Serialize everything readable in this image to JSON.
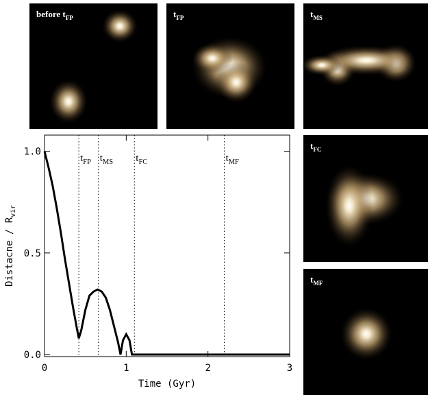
{
  "chart_data": {
    "type": "line",
    "x_label": "Time (Gyr)",
    "y_label": "Distacne / R",
    "y_label_sub": "vir",
    "x": [
      0,
      0.05,
      0.1,
      0.15,
      0.2,
      0.25,
      0.3,
      0.35,
      0.4,
      0.42,
      0.45,
      0.5,
      0.55,
      0.6,
      0.65,
      0.7,
      0.75,
      0.8,
      0.85,
      0.9,
      0.93,
      0.96,
      1.0,
      1.04,
      1.07,
      1.1,
      1.5,
      2,
      2.5,
      3
    ],
    "series": [
      {
        "color": "#000000",
        "values": [
          1.0,
          0.92,
          0.83,
          0.72,
          0.6,
          0.47,
          0.35,
          0.23,
          0.12,
          0.08,
          0.12,
          0.22,
          0.29,
          0.31,
          0.32,
          0.31,
          0.28,
          0.22,
          0.14,
          0.06,
          0.0,
          0.07,
          0.1,
          0.07,
          0.0,
          0.0,
          0,
          0,
          0,
          0
        ]
      }
    ],
    "xlim": [
      0,
      3
    ],
    "xticks": [
      0,
      1,
      2,
      3
    ],
    "ylim": [
      -0.01,
      1.08
    ],
    "yticks": [
      {
        "value": 0,
        "label": "0.0"
      },
      {
        "value": 0.5,
        "label": "0.5"
      },
      {
        "value": 1,
        "label": "1.0"
      }
    ],
    "events": [
      {
        "name": "t",
        "sub": "FP",
        "x": 0.42
      },
      {
        "name": "t",
        "sub": "MS",
        "x": 0.66
      },
      {
        "name": "t",
        "sub": "FC",
        "x": 1.1
      },
      {
        "name": "t",
        "sub": "MF",
        "x": 2.2
      }
    ]
  },
  "panels": [
    {
      "name": "before t",
      "sub": "FP"
    },
    {
      "name": "t",
      "sub": "FP"
    },
    {
      "name": "t",
      "sub": "MS"
    },
    {
      "name": "t",
      "sub": "FC"
    },
    {
      "name": "t",
      "sub": "MF"
    }
  ]
}
